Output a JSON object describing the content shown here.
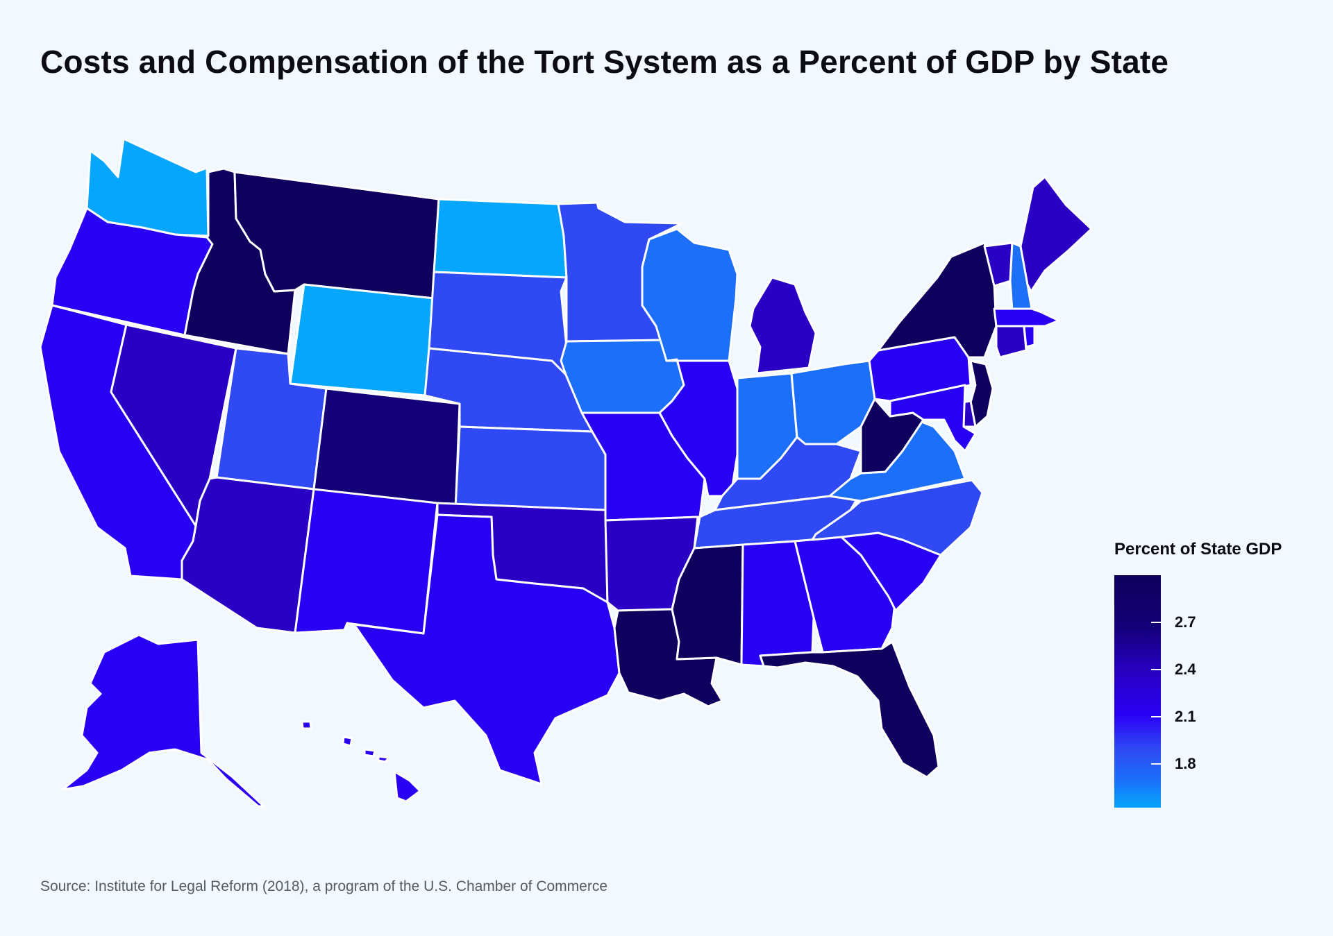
{
  "title": "Costs and Compensation of the Tort System as a Percent of GDP by State",
  "legend": {
    "title": "Percent of State GDP",
    "ticks": [
      {
        "label": "2.7",
        "value": 2.7
      },
      {
        "label": "2.4",
        "value": 2.4
      },
      {
        "label": "2.1",
        "value": 2.1
      },
      {
        "label": "1.8",
        "value": 1.8
      }
    ],
    "range": [
      1.52,
      3.0
    ],
    "colors": [
      "#05a6fd",
      "#1b6ff8",
      "#2f4af5",
      "#2a00f5",
      "#2900c4",
      "#140078",
      "#0e005c"
    ]
  },
  "states": {
    "WA": 1.7,
    "OR": 2.25,
    "CA": 2.25,
    "ID": 2.9,
    "NV": 2.55,
    "MT": 2.9,
    "WY": 1.55,
    "UT": 1.95,
    "AZ": 2.55,
    "CO": 2.6,
    "NM": 2.25,
    "ND": 1.55,
    "SD": 1.95,
    "NE": 1.95,
    "KS": 1.95,
    "OK": 2.55,
    "TX": 2.25,
    "MN": 1.95,
    "IA": 1.85,
    "MO": 2.3,
    "AR": 2.55,
    "LA": 2.9,
    "WI": 1.85,
    "IL": 2.3,
    "MI": 2.55,
    "IN": 1.8,
    "OH": 1.85,
    "KY": 2.0,
    "TN": 1.95,
    "MS": 2.9,
    "AL": 2.25,
    "GA": 2.25,
    "FL": 2.9,
    "SC": 2.25,
    "NC": 1.95,
    "VA": 1.8,
    "WV": 2.9,
    "PA": 2.25,
    "NY": 2.9,
    "VT": 2.55,
    "NH": 1.85,
    "ME": 2.55,
    "MA": 2.25,
    "CT": 2.55,
    "RI": 2.25,
    "NJ": 2.9,
    "DE": 2.55,
    "MD": 2.3,
    "AK": 2.25,
    "HI": 2.25
  },
  "source": "Source: Institute for Legal Reform (2018), a program of the U.S. Chamber of Commerce"
}
